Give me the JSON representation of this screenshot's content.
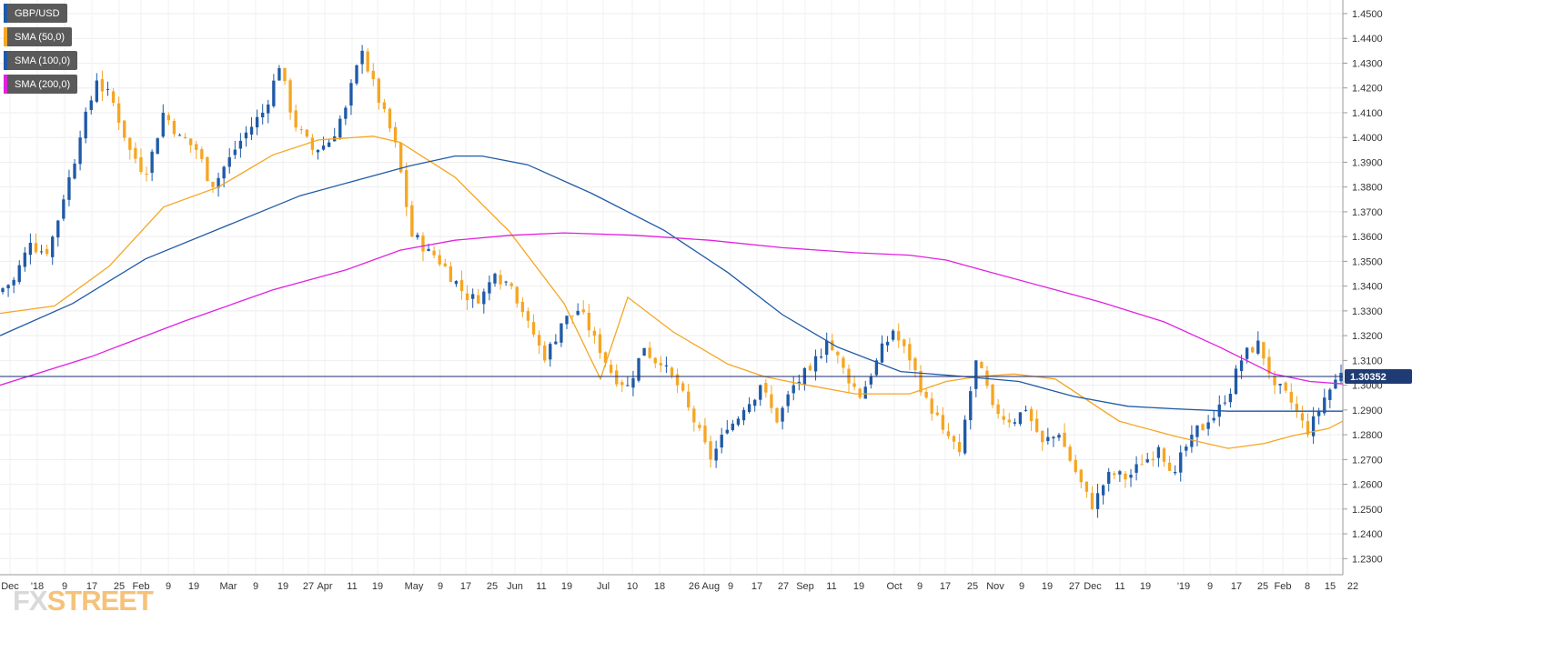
{
  "chart_data": {
    "type": "candlestick",
    "symbol": "GBP/USD",
    "legend": [
      {
        "label": "GBP/USD",
        "color": "#1f5aa6"
      },
      {
        "label": "SMA (50,0)",
        "color": "#f5a623"
      },
      {
        "label": "SMA (100,0)",
        "color": "#1f5aa6"
      },
      {
        "label": "SMA (200,0)",
        "color": "#e020e0"
      }
    ],
    "ylim": [
      1.2235,
      1.4555
    ],
    "y_ticks": [
      "1.4500",
      "1.4400",
      "1.4300",
      "1.4200",
      "1.4100",
      "1.4000",
      "1.3900",
      "1.3800",
      "1.3700",
      "1.3600",
      "1.3500",
      "1.3400",
      "1.3300",
      "1.3200",
      "1.3100",
      "1.3000",
      "1.2900",
      "1.2800",
      "1.2700",
      "1.2600",
      "1.2500",
      "1.2400",
      "1.2300"
    ],
    "x_ticks": [
      "Dec",
      "'18",
      "9",
      "17",
      "25",
      "Feb",
      "9",
      "19",
      "Mar",
      "9",
      "19",
      "27",
      "Apr",
      "11",
      "19",
      "May",
      "9",
      "17",
      "25",
      "Jun",
      "11",
      "19",
      "Jul",
      "10",
      "18",
      "26 Aug",
      "9",
      "17",
      "27",
      "Sep",
      "11",
      "19",
      "Oct",
      "9",
      "17",
      "25",
      "Nov",
      "9",
      "19",
      "27",
      "Dec",
      "11",
      "19",
      "'19",
      "9",
      "17",
      "25",
      "Feb",
      "8",
      "15",
      "22"
    ],
    "last_price": "1.30352",
    "last_value": 1.30352,
    "ohlc_anchors": [
      [
        1.3375,
        1.3425
      ],
      [
        1.3425,
        1.3575
      ],
      [
        1.3575,
        1.353
      ],
      [
        1.352,
        1.375
      ],
      [
        1.375,
        1.4
      ],
      [
        1.4,
        1.423
      ],
      [
        1.423,
        1.414
      ],
      [
        1.414,
        1.395
      ],
      [
        1.395,
        1.385
      ],
      [
        1.385,
        1.41
      ],
      [
        1.41,
        1.401
      ],
      [
        1.401,
        1.395
      ],
      [
        1.395,
        1.38
      ],
      [
        1.38,
        1.392
      ],
      [
        1.392,
        1.402
      ],
      [
        1.402,
        1.41
      ],
      [
        1.41,
        1.428
      ],
      [
        1.428,
        1.404
      ],
      [
        1.404,
        1.395
      ],
      [
        1.395,
        1.398
      ],
      [
        1.398,
        1.412
      ],
      [
        1.412,
        1.435
      ],
      [
        1.435,
        1.414
      ],
      [
        1.414,
        1.398
      ],
      [
        1.398,
        1.36
      ],
      [
        1.36,
        1.355
      ],
      [
        1.355,
        1.348
      ],
      [
        1.348,
        1.338
      ],
      [
        1.338,
        1.333
      ],
      [
        1.333,
        1.345
      ],
      [
        1.345,
        1.34
      ],
      [
        1.34,
        1.326
      ],
      [
        1.326,
        1.31
      ],
      [
        1.31,
        1.325
      ],
      [
        1.325,
        1.33
      ],
      [
        1.33,
        1.32
      ],
      [
        1.32,
        1.305
      ],
      [
        1.305,
        1.3
      ],
      [
        1.3,
        1.315
      ],
      [
        1.315,
        1.308
      ],
      [
        1.308,
        1.3
      ],
      [
        1.3,
        1.285
      ],
      [
        1.285,
        1.27
      ],
      [
        1.27,
        1.282
      ],
      [
        1.282,
        1.29
      ],
      [
        1.29,
        1.3
      ],
      [
        1.3,
        1.285
      ],
      [
        1.285,
        1.3
      ],
      [
        1.3,
        1.306
      ],
      [
        1.306,
        1.318
      ],
      [
        1.318,
        1.307
      ],
      [
        1.307,
        1.295
      ],
      [
        1.295,
        1.31
      ],
      [
        1.31,
        1.322
      ],
      [
        1.322,
        1.31
      ],
      [
        1.31,
        1.295
      ],
      [
        1.295,
        1.282
      ],
      [
        1.282,
        1.273
      ],
      [
        1.273,
        1.31
      ],
      [
        1.31,
        1.292
      ],
      [
        1.292,
        1.285
      ],
      [
        1.285,
        1.29
      ],
      [
        1.29,
        1.277
      ],
      [
        1.277,
        1.28
      ],
      [
        1.28,
        1.265
      ],
      [
        1.265,
        1.25
      ],
      [
        1.25,
        1.265
      ],
      [
        1.265,
        1.262
      ],
      [
        1.262,
        1.268
      ],
      [
        1.268,
        1.275
      ],
      [
        1.275,
        1.265
      ],
      [
        1.265,
        1.28
      ],
      [
        1.28,
        1.285
      ],
      [
        1.285,
        1.293
      ],
      [
        1.293,
        1.31
      ],
      [
        1.31,
        1.318
      ],
      [
        1.318,
        1.3
      ],
      [
        1.3,
        1.293
      ],
      [
        1.293,
        1.28
      ],
      [
        1.28,
        1.295
      ],
      [
        1.295,
        1.305
      ]
    ],
    "series": [
      {
        "name": "SMA (50,0)",
        "color": "#f5a623",
        "values": [
          [
            0,
            1.329
          ],
          [
            60,
            1.332
          ],
          [
            120,
            1.348
          ],
          [
            180,
            1.372
          ],
          [
            240,
            1.38
          ],
          [
            300,
            1.393
          ],
          [
            350,
            1.399
          ],
          [
            410,
            1.4005
          ],
          [
            440,
            1.398
          ],
          [
            500,
            1.384
          ],
          [
            560,
            1.362
          ],
          [
            620,
            1.333
          ],
          [
            660,
            1.3025
          ],
          [
            690,
            1.3355
          ],
          [
            740,
            1.3215
          ],
          [
            800,
            1.3085
          ],
          [
            840,
            1.3035
          ],
          [
            880,
            1.3005
          ],
          [
            940,
            1.2965
          ],
          [
            1000,
            1.2965
          ],
          [
            1040,
            1.3015
          ],
          [
            1075,
            1.3035
          ],
          [
            1115,
            1.3045
          ],
          [
            1160,
            1.3025
          ],
          [
            1230,
            1.2855
          ],
          [
            1290,
            1.2795
          ],
          [
            1350,
            1.2745
          ],
          [
            1390,
            1.2765
          ],
          [
            1420,
            1.2795
          ],
          [
            1460,
            1.2825
          ],
          [
            1476,
            1.2855
          ]
        ]
      },
      {
        "name": "SMA (100,0)",
        "color": "#1f5aa6",
        "values": [
          [
            0,
            1.32
          ],
          [
            80,
            1.333
          ],
          [
            160,
            1.351
          ],
          [
            240,
            1.363
          ],
          [
            330,
            1.3765
          ],
          [
            400,
            1.3835
          ],
          [
            450,
            1.3885
          ],
          [
            500,
            1.3925
          ],
          [
            530,
            1.3925
          ],
          [
            580,
            1.389
          ],
          [
            650,
            1.3775
          ],
          [
            730,
            1.3625
          ],
          [
            800,
            1.3455
          ],
          [
            860,
            1.3285
          ],
          [
            920,
            1.3155
          ],
          [
            990,
            1.3055
          ],
          [
            1060,
            1.3035
          ],
          [
            1120,
            1.3015
          ],
          [
            1180,
            1.2955
          ],
          [
            1240,
            1.2915
          ],
          [
            1290,
            1.2905
          ],
          [
            1350,
            1.2895
          ],
          [
            1410,
            1.2895
          ],
          [
            1476,
            1.2895
          ]
        ]
      },
      {
        "name": "SMA (200,0)",
        "color": "#e020e0",
        "values": [
          [
            0,
            1.3
          ],
          [
            100,
            1.3115
          ],
          [
            200,
            1.3255
          ],
          [
            300,
            1.3385
          ],
          [
            380,
            1.3465
          ],
          [
            440,
            1.3545
          ],
          [
            500,
            1.3585
          ],
          [
            560,
            1.3605
          ],
          [
            620,
            1.3615
          ],
          [
            700,
            1.3605
          ],
          [
            780,
            1.3585
          ],
          [
            860,
            1.3555
          ],
          [
            940,
            1.3535
          ],
          [
            1000,
            1.3525
          ],
          [
            1040,
            1.3505
          ],
          [
            1090,
            1.3455
          ],
          [
            1150,
            1.3395
          ],
          [
            1210,
            1.3335
          ],
          [
            1280,
            1.3255
          ],
          [
            1340,
            1.3155
          ],
          [
            1400,
            1.3045
          ],
          [
            1440,
            1.3015
          ],
          [
            1476,
            1.3005
          ]
        ]
      }
    ]
  },
  "logo": {
    "part1": "FX",
    "part2": "STREET"
  }
}
